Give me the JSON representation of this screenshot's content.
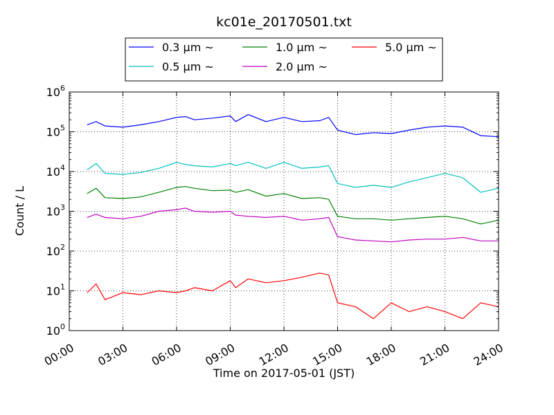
{
  "chart_data": {
    "type": "line",
    "title": "kc01e_20170501.txt",
    "xlabel": "Time on 2017-05-01 (JST)",
    "ylabel": "Count / L",
    "xlim": [
      "00:00",
      "24:00"
    ],
    "ylim": [
      1,
      1000000
    ],
    "yscale": "log",
    "grid": true,
    "legend_position": "top-center",
    "x_tick_labels": [
      "00:00",
      "03:00",
      "06:00",
      "09:00",
      "12:00",
      "15:00",
      "18:00",
      "21:00",
      "24:00"
    ],
    "y_tick_labels": [
      {
        "base": "10",
        "exp": "0"
      },
      {
        "base": "10",
        "exp": "1"
      },
      {
        "base": "10",
        "exp": "2"
      },
      {
        "base": "10",
        "exp": "3"
      },
      {
        "base": "10",
        "exp": "4"
      },
      {
        "base": "10",
        "exp": "5"
      },
      {
        "base": "10",
        "exp": "6"
      }
    ],
    "x_hours": [
      1,
      1.5,
      2,
      3,
      4,
      5,
      6,
      6.5,
      7,
      8,
      9,
      9.3,
      10,
      11,
      12,
      13,
      14,
      14.5,
      15,
      16,
      17,
      18,
      19,
      20,
      21,
      22,
      23,
      24
    ],
    "series": [
      {
        "name": "0.3 μm ~",
        "color": "#0000ff",
        "values": [
          150000,
          180000,
          140000,
          130000,
          150000,
          180000,
          230000,
          240000,
          200000,
          220000,
          250000,
          180000,
          270000,
          180000,
          230000,
          180000,
          190000,
          230000,
          110000,
          85000,
          95000,
          90000,
          110000,
          130000,
          140000,
          130000,
          80000,
          75000
        ]
      },
      {
        "name": "0.5 μm ~",
        "color": "#00bfbf",
        "values": [
          11000,
          16000,
          9000,
          8500,
          9500,
          12000,
          17000,
          15000,
          14000,
          13000,
          16000,
          14000,
          17000,
          12000,
          17000,
          12000,
          13000,
          14000,
          5000,
          4000,
          4500,
          4000,
          5500,
          7000,
          9000,
          7000,
          3000,
          3800
        ]
      },
      {
        "name": "1.0 μm ~",
        "color": "#008000",
        "values": [
          2800,
          3800,
          2200,
          2100,
          2300,
          3000,
          4000,
          4200,
          3800,
          3300,
          3400,
          3000,
          3500,
          2400,
          2800,
          2100,
          2200,
          2000,
          750,
          650,
          650,
          600,
          650,
          700,
          750,
          650,
          480,
          600
        ]
      },
      {
        "name": "2.0 μm ~",
        "color": "#bf00bf",
        "values": [
          700,
          850,
          700,
          650,
          750,
          1000,
          1100,
          1200,
          1000,
          950,
          1000,
          800,
          750,
          700,
          750,
          600,
          650,
          700,
          230,
          190,
          180,
          170,
          190,
          200,
          200,
          220,
          180,
          180
        ]
      },
      {
        "name": "5.0 μm ~",
        "color": "#ff0000",
        "values": [
          9,
          15,
          6,
          9,
          8,
          10,
          9,
          10,
          12,
          10,
          18,
          12,
          20,
          16,
          18,
          22,
          28,
          25,
          5,
          4,
          2,
          5,
          3,
          4,
          3,
          2,
          5,
          4
        ]
      }
    ]
  }
}
